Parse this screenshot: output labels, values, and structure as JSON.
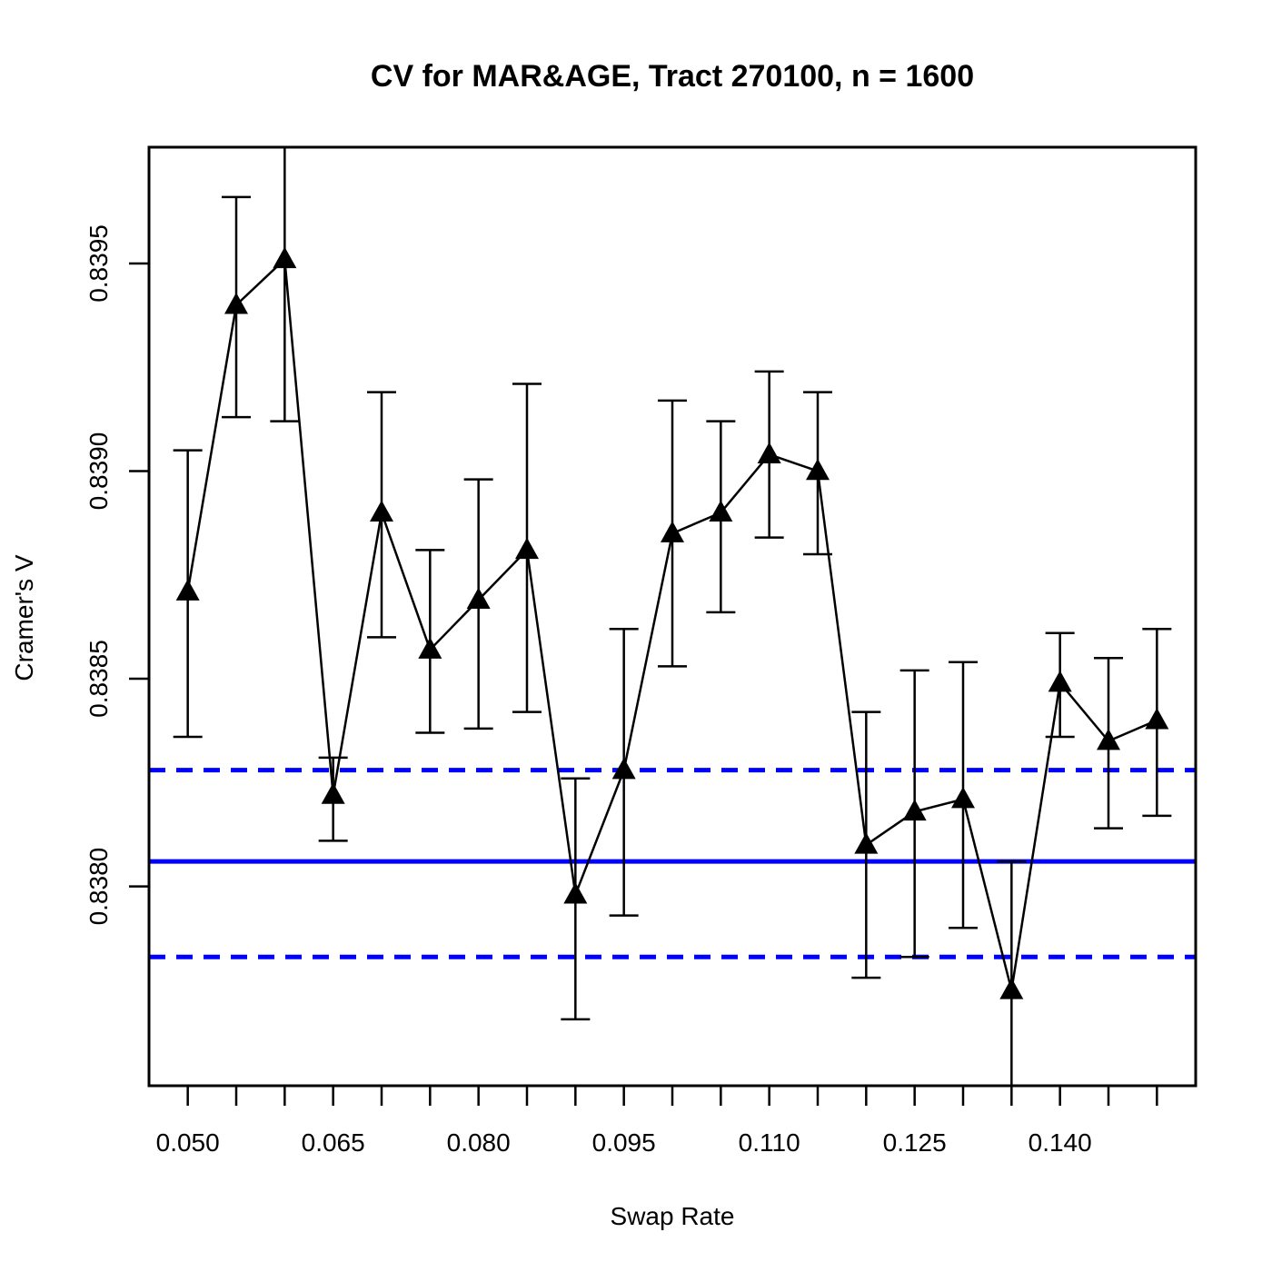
{
  "chart_data": {
    "type": "line",
    "title": "CV for MAR&AGE, Tract 270100, n = 1600",
    "xlabel": "Swap Rate",
    "ylabel": "Cramer's V",
    "xlim": [
      0.046,
      0.154
    ],
    "ylim": [
      0.83752,
      0.83978
    ],
    "x_ticks": [
      0.05,
      0.055,
      0.06,
      0.065,
      0.07,
      0.075,
      0.08,
      0.085,
      0.09,
      0.095,
      0.1,
      0.105,
      0.11,
      0.115,
      0.12,
      0.125,
      0.13,
      0.135,
      0.14,
      0.145,
      0.15
    ],
    "x_tick_labels": [
      "0.050",
      "0.065",
      "0.080",
      "0.095",
      "0.110",
      "0.125",
      "0.140"
    ],
    "x_tick_label_values": [
      0.05,
      0.065,
      0.08,
      0.095,
      0.11,
      0.125,
      0.14
    ],
    "y_ticks": [
      0.838,
      0.8385,
      0.839,
      0.8395
    ],
    "y_tick_labels": [
      "0.8380",
      "0.8385",
      "0.8390",
      "0.8395"
    ],
    "series": [
      {
        "name": "Cramer's V",
        "marker": "triangle",
        "color": "#000000",
        "x": [
          0.05,
          0.055,
          0.06,
          0.065,
          0.07,
          0.075,
          0.08,
          0.085,
          0.09,
          0.095,
          0.1,
          0.105,
          0.11,
          0.115,
          0.12,
          0.125,
          0.13,
          0.135,
          0.14,
          0.145,
          0.15
        ],
        "y": [
          0.83871,
          0.8394,
          0.83951,
          0.83822,
          0.8389,
          0.83857,
          0.83869,
          0.83881,
          0.83798,
          0.83828,
          0.83885,
          0.8389,
          0.83904,
          0.839,
          0.8381,
          0.83818,
          0.83821,
          0.83775,
          0.83849,
          0.83835,
          0.8384
        ],
        "err_low": [
          0.83836,
          0.83913,
          0.83912,
          0.83811,
          0.8386,
          0.83837,
          0.83838,
          0.83842,
          0.83768,
          0.83793,
          0.83853,
          0.83866,
          0.83884,
          0.8388,
          0.83778,
          0.83783,
          0.8379,
          0.83748,
          0.83836,
          0.83814,
          0.83817
        ],
        "err_high": [
          0.83905,
          0.83966,
          0.83997,
          0.83831,
          0.83919,
          0.83881,
          0.83898,
          0.83921,
          0.83826,
          0.83862,
          0.83917,
          0.83912,
          0.83924,
          0.83919,
          0.83842,
          0.83852,
          0.83854,
          0.83806,
          0.83861,
          0.83855,
          0.83862
        ]
      }
    ],
    "reference_lines": [
      {
        "name": "reference",
        "y": 0.83806,
        "style": "solid",
        "color": "#0000ff"
      },
      {
        "name": "upper-bound",
        "y": 0.83828,
        "style": "dashed",
        "color": "#0000ff"
      },
      {
        "name": "lower-bound",
        "y": 0.83783,
        "style": "dashed",
        "color": "#0000ff"
      }
    ],
    "grid": false,
    "legend": "none"
  }
}
